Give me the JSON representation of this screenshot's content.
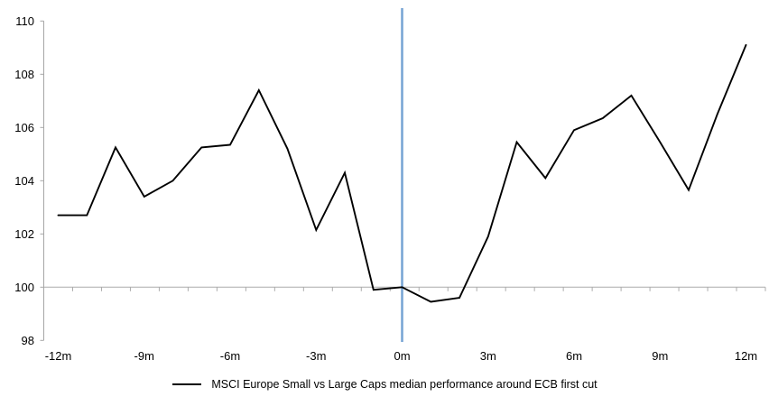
{
  "chart_data": {
    "type": "line",
    "title": "",
    "xlabel": "",
    "ylabel": "",
    "x_unit": "months relative to ECB first cut",
    "x": [
      -12,
      -11,
      -10,
      -9,
      -8,
      -7,
      -6,
      -5,
      -4,
      -3,
      -2,
      -1,
      0,
      1,
      2,
      3,
      4,
      5,
      6,
      7,
      8,
      9,
      10,
      11,
      12
    ],
    "series": [
      {
        "name": "MSCI Europe Small vs Large Caps median performance around ECB first cut",
        "values": [
          102.7,
          102.7,
          105.25,
          103.4,
          104.0,
          105.25,
          105.35,
          107.4,
          105.2,
          102.15,
          104.3,
          99.9,
          100.0,
          99.45,
          99.6,
          101.9,
          105.45,
          104.1,
          105.9,
          106.35,
          107.2,
          105.45,
          103.65,
          106.5,
          109.1
        ],
        "color": "#000000"
      }
    ],
    "ylim": [
      98,
      110
    ],
    "y_ticks": [
      98,
      100,
      102,
      104,
      106,
      108,
      110
    ],
    "y_tick_labels": [
      "98",
      "100",
      "102",
      "104",
      "106",
      "108",
      "110"
    ],
    "x_tick_months": [
      -12,
      -9,
      -6,
      -3,
      0,
      3,
      6,
      9,
      12
    ],
    "x_tick_labels": [
      "-12m",
      "-9m",
      "-6m",
      "-3m",
      "0m",
      "3m",
      "6m",
      "9m",
      "12m"
    ],
    "baseline_value": 100,
    "event_line_x": 0,
    "grid": "baseline-only",
    "legend_position": "bottom-center",
    "colors": {
      "series_line": "#000000",
      "event_line": "#75A3D4",
      "axis_line": "#A6A6A6",
      "baseline_line": "#ABABAB",
      "text": "#000000",
      "background": "#FFFFFF"
    }
  },
  "legend": {
    "label": "MSCI Europe Small vs Large Caps median performance around ECB first cut"
  }
}
